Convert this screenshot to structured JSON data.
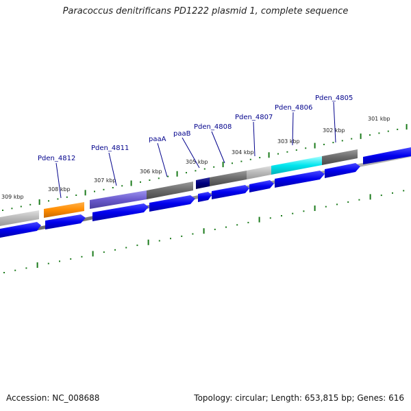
{
  "title": "Paracoccus denitrificans PD1222 plasmid 1, complete sequence",
  "footer": {
    "accession": "Accession: NC_008688",
    "summary": "Topology: circular; Length: 653,815 bp; Genes: 616"
  },
  "colors": {
    "forward_gene": "#0000ee",
    "backbone": "#777777",
    "tick": "#1a7a1a",
    "label": "#00008b"
  },
  "kbp_labels": [
    "309 kbp",
    "308 kbp",
    "307 kbp",
    "306 kbp",
    "305 kbp",
    "304 kbp",
    "303 kbp",
    "302 kbp",
    "301 kbp"
  ],
  "gene_labels": [
    "Pden_4812",
    "Pden_4811",
    "paaA",
    "paaB",
    "Pden_4808",
    "Pden_4807",
    "Pden_4806",
    "Pden_4805"
  ]
}
